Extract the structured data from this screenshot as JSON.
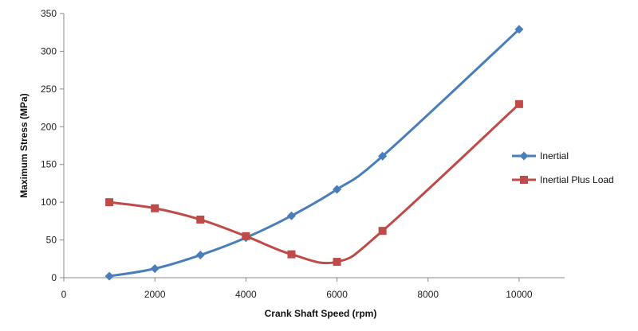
{
  "chart_data": {
    "type": "line",
    "xlabel": "Crank Shaft Speed (rpm)",
    "ylabel": "Maximum Stress (MPa)",
    "xlim": [
      0,
      11000
    ],
    "ylim": [
      0,
      350
    ],
    "xticks": [
      0,
      2000,
      4000,
      6000,
      8000,
      10000
    ],
    "yticks": [
      0,
      50,
      100,
      150,
      200,
      250,
      300,
      350
    ],
    "grid": false,
    "legend_position": "right",
    "series": [
      {
        "name": "Inertial",
        "color": "#4a7ebb",
        "marker": "diamond",
        "x": [
          1000,
          2000,
          3000,
          4000,
          5000,
          6000,
          7000,
          10000
        ],
        "y": [
          2,
          12,
          30,
          53,
          82,
          117,
          161,
          329
        ]
      },
      {
        "name": "Inertial Plus Load",
        "color": "#be4b48",
        "marker": "square",
        "x": [
          1000,
          2000,
          3000,
          4000,
          5000,
          6000,
          7000,
          10000
        ],
        "y": [
          100,
          92,
          77,
          55,
          31,
          21,
          62,
          230
        ]
      }
    ]
  }
}
